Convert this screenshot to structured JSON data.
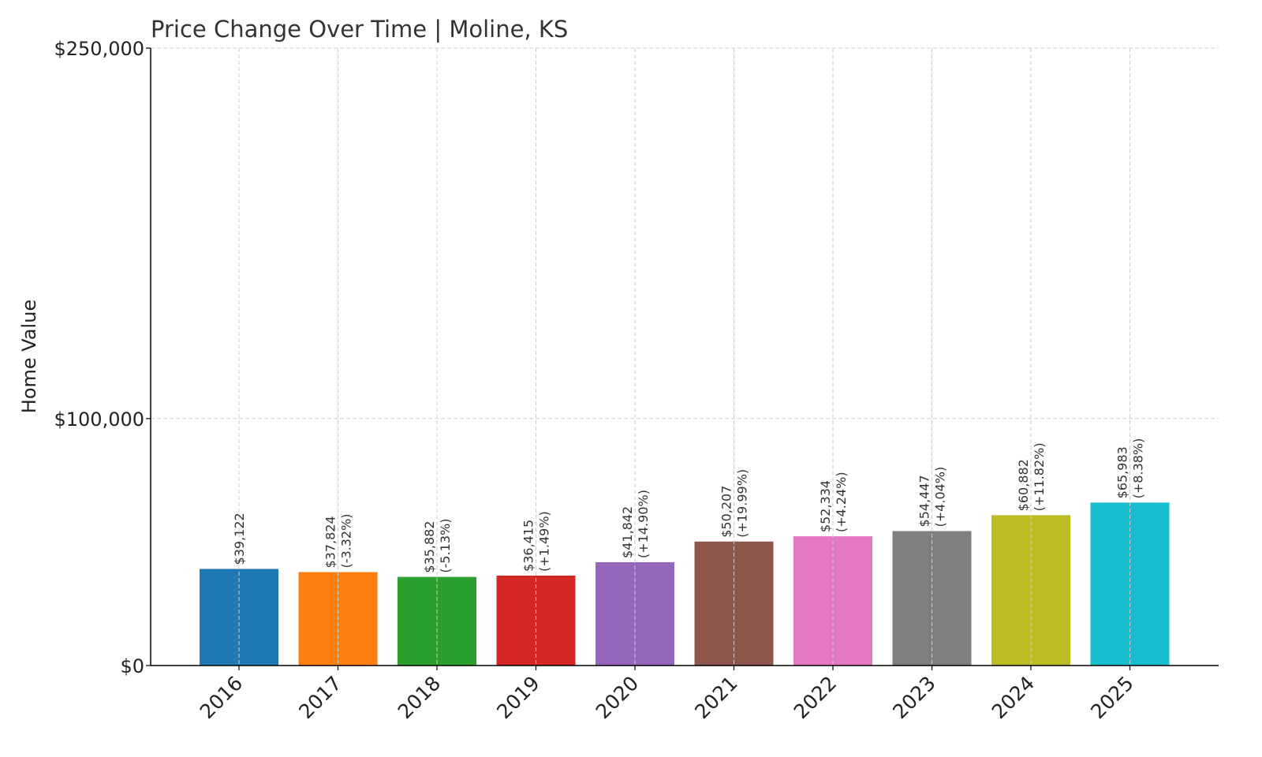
{
  "chart_data": {
    "type": "bar",
    "title": "Price Change Over Time | Moline, KS",
    "xlabel": "",
    "ylabel": "Home Value",
    "ylim": [
      0,
      250000
    ],
    "yticks": [
      0,
      100000,
      250000
    ],
    "ytick_labels": [
      "$0",
      "$100,000",
      "$250,000"
    ],
    "grid": true,
    "categories": [
      "2016",
      "2017",
      "2018",
      "2019",
      "2020",
      "2021",
      "2022",
      "2023",
      "2024",
      "2025"
    ],
    "values": [
      39122,
      37824,
      35882,
      36415,
      41842,
      50207,
      52334,
      54447,
      60882,
      65983
    ],
    "value_labels": [
      "$39,122",
      "$37,824",
      "$35,882",
      "$36,415",
      "$41,842",
      "$50,207",
      "$52,334",
      "$54,447",
      "$60,882",
      "$65,983"
    ],
    "change_labels": [
      "",
      "(-3.32%)",
      "(-5.13%)",
      "(+1.49%)",
      "(+14.90%)",
      "(+19.99%)",
      "(+4.24%)",
      "(+4.04%)",
      "(+11.82%)",
      "(+8.38%)"
    ],
    "colors": [
      "#1f77b4",
      "#ff7f0e",
      "#2ca02c",
      "#d62728",
      "#9467bd",
      "#8c564b",
      "#e377c2",
      "#7f7f7f",
      "#bcbd22",
      "#17becf"
    ]
  }
}
